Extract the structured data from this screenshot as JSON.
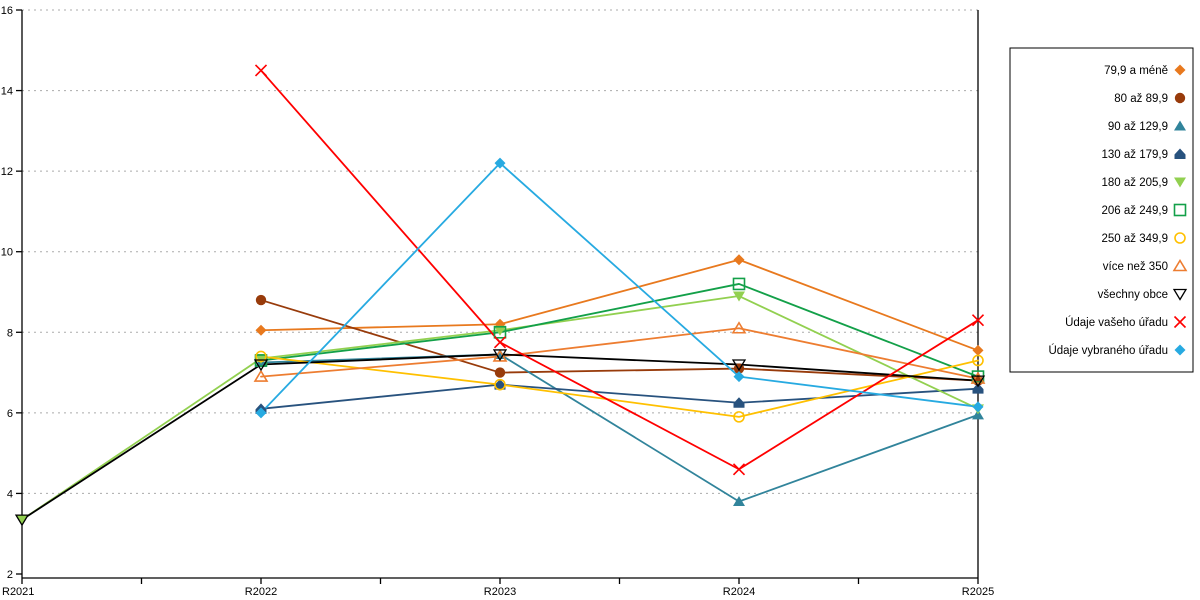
{
  "chart_data": {
    "type": "line",
    "title": "",
    "xlabel": "",
    "ylabel": "",
    "categories": [
      "R2021",
      "R2022",
      "R2023",
      "R2024",
      "R2025"
    ],
    "y_axis": {
      "min": 2,
      "max": 16,
      "step": 2,
      "tick_labels": [
        "2",
        "4",
        "6",
        "8",
        "10",
        "12",
        "14",
        "16"
      ]
    },
    "grid": "horizontal-dashed",
    "legend_position": "right",
    "series": [
      {
        "name": "79,9 a méně",
        "color": "#E8791E",
        "marker": "diamond-filled",
        "values": [
          null,
          8.05,
          8.2,
          9.8,
          7.55
        ]
      },
      {
        "name": "80 až 89,9",
        "color": "#983B0B",
        "marker": "circle-filled",
        "values": [
          null,
          8.8,
          7.0,
          7.1,
          6.8
        ]
      },
      {
        "name": "90 až 129,9",
        "color": "#31849B",
        "marker": "triangle-up-filled",
        "values": [
          null,
          7.25,
          7.45,
          3.8,
          5.95
        ]
      },
      {
        "name": "130 až 179,9",
        "color": "#28527E",
        "marker": "pentagon-filled",
        "values": [
          null,
          6.1,
          6.7,
          6.25,
          6.6
        ]
      },
      {
        "name": "180 až 205,9",
        "color": "#92D050",
        "marker": "triangle-down-filled",
        "values": [
          3.35,
          7.35,
          8.05,
          8.9,
          6.1
        ]
      },
      {
        "name": "206 až 249,9",
        "color": "#13A049",
        "marker": "square-open",
        "values": [
          null,
          7.3,
          8.0,
          9.2,
          6.9
        ]
      },
      {
        "name": "250 až 349,9",
        "color": "#FFC000",
        "marker": "circle-open",
        "values": [
          null,
          7.4,
          6.7,
          5.9,
          7.3
        ]
      },
      {
        "name": "více než 350",
        "color": "#ED7D31",
        "marker": "triangle-up-open",
        "values": [
          null,
          6.9,
          7.4,
          8.1,
          6.85
        ]
      },
      {
        "name": "všechny obce",
        "color": "#000000",
        "marker": "triangle-down-open",
        "values": [
          3.35,
          7.2,
          7.45,
          7.2,
          6.8
        ]
      },
      {
        "name": "Údaje vašeho úřadu",
        "color": "#FF0000",
        "marker": "x",
        "values": [
          null,
          14.5,
          7.75,
          4.6,
          8.3
        ]
      },
      {
        "name": "Údaje vybraného úřadu",
        "color": "#27AAE1",
        "marker": "diamond-filled",
        "values": [
          null,
          6.0,
          12.2,
          6.9,
          6.15
        ]
      }
    ],
    "colors": {
      "grid": "#ABABAB",
      "axis": "#000000",
      "legend_border": "#000000",
      "background": "#FFFFFF"
    }
  }
}
